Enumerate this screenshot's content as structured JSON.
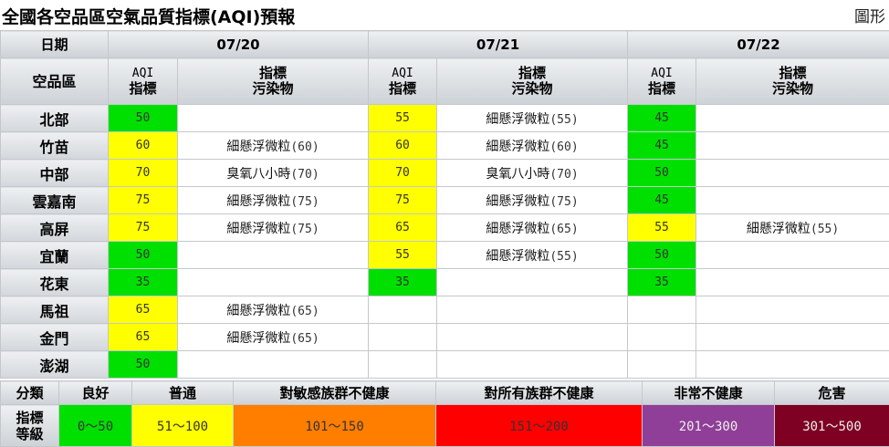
{
  "page": {
    "title": "全國各空品區空氣品質指標(AQI)預報",
    "graph_link": "圖形"
  },
  "table": {
    "date_header": "日期",
    "area_header": "空品區",
    "dates": [
      "07/20",
      "07/21",
      "07/22"
    ],
    "sub_aqi_line1": "AQI",
    "sub_aqi_line2": "指標",
    "sub_poll_line1": "指標",
    "sub_poll_line2": "污染物",
    "rows": [
      {
        "area": "北部",
        "d": [
          {
            "aqi": "50",
            "level": "good",
            "poll": "",
            "pval": ""
          },
          {
            "aqi": "55",
            "level": "moderate",
            "poll": "細懸浮微粒",
            "pval": "(55)"
          },
          {
            "aqi": "45",
            "level": "good",
            "poll": "",
            "pval": ""
          }
        ]
      },
      {
        "area": "竹苗",
        "d": [
          {
            "aqi": "60",
            "level": "moderate",
            "poll": "細懸浮微粒",
            "pval": "(60)"
          },
          {
            "aqi": "60",
            "level": "moderate",
            "poll": "細懸浮微粒",
            "pval": "(60)"
          },
          {
            "aqi": "45",
            "level": "good",
            "poll": "",
            "pval": ""
          }
        ]
      },
      {
        "area": "中部",
        "d": [
          {
            "aqi": "70",
            "level": "moderate",
            "poll": "臭氧八小時",
            "pval": "(70)"
          },
          {
            "aqi": "70",
            "level": "moderate",
            "poll": "臭氧八小時",
            "pval": "(70)"
          },
          {
            "aqi": "50",
            "level": "good",
            "poll": "",
            "pval": ""
          }
        ]
      },
      {
        "area": "雲嘉南",
        "d": [
          {
            "aqi": "75",
            "level": "moderate",
            "poll": "細懸浮微粒",
            "pval": "(75)"
          },
          {
            "aqi": "75",
            "level": "moderate",
            "poll": "細懸浮微粒",
            "pval": "(75)"
          },
          {
            "aqi": "45",
            "level": "good",
            "poll": "",
            "pval": ""
          }
        ]
      },
      {
        "area": "高屏",
        "d": [
          {
            "aqi": "75",
            "level": "moderate",
            "poll": "細懸浮微粒",
            "pval": "(75)"
          },
          {
            "aqi": "65",
            "level": "moderate",
            "poll": "細懸浮微粒",
            "pval": "(65)"
          },
          {
            "aqi": "55",
            "level": "moderate",
            "poll": "細懸浮微粒",
            "pval": "(55)"
          }
        ]
      },
      {
        "area": "宜蘭",
        "d": [
          {
            "aqi": "50",
            "level": "good",
            "poll": "",
            "pval": ""
          },
          {
            "aqi": "55",
            "level": "moderate",
            "poll": "細懸浮微粒",
            "pval": "(55)"
          },
          {
            "aqi": "50",
            "level": "good",
            "poll": "",
            "pval": ""
          }
        ]
      },
      {
        "area": "花東",
        "d": [
          {
            "aqi": "35",
            "level": "good",
            "poll": "",
            "pval": ""
          },
          {
            "aqi": "35",
            "level": "good",
            "poll": "",
            "pval": ""
          },
          {
            "aqi": "35",
            "level": "good",
            "poll": "",
            "pval": ""
          }
        ]
      },
      {
        "area": "馬祖",
        "d": [
          {
            "aqi": "65",
            "level": "moderate",
            "poll": "細懸浮微粒",
            "pval": "(65)"
          },
          {
            "aqi": "",
            "level": "",
            "poll": "",
            "pval": ""
          },
          {
            "aqi": "",
            "level": "",
            "poll": "",
            "pval": ""
          }
        ]
      },
      {
        "area": "金門",
        "d": [
          {
            "aqi": "65",
            "level": "moderate",
            "poll": "細懸浮微粒",
            "pval": "(65)"
          },
          {
            "aqi": "",
            "level": "",
            "poll": "",
            "pval": ""
          },
          {
            "aqi": "",
            "level": "",
            "poll": "",
            "pval": ""
          }
        ]
      },
      {
        "area": "澎湖",
        "d": [
          {
            "aqi": "50",
            "level": "good",
            "poll": "",
            "pval": ""
          },
          {
            "aqi": "",
            "level": "",
            "poll": "",
            "pval": ""
          },
          {
            "aqi": "",
            "level": "",
            "poll": "",
            "pval": ""
          }
        ]
      }
    ]
  },
  "legend": {
    "category_label": "分類",
    "index_label_line1": "指標",
    "index_label_line2": "等級",
    "levels": [
      {
        "key": "good",
        "name": "良好",
        "range": "0～50",
        "color": "#00e000"
      },
      {
        "key": "moderate",
        "name": "普通",
        "range": "51～100",
        "color": "#ffff00"
      },
      {
        "key": "usg",
        "name": "對敏感族群不健康",
        "range": "101～150",
        "color": "#ff7e00"
      },
      {
        "key": "unhealthy",
        "name": "對所有族群不健康",
        "range": "151～200",
        "color": "#ff0000"
      },
      {
        "key": "very",
        "name": "非常不健康",
        "range": "201～300",
        "color": "#8f3f97"
      },
      {
        "key": "hazard",
        "name": "危害",
        "range": "301～500",
        "color": "#7e0023"
      }
    ]
  }
}
